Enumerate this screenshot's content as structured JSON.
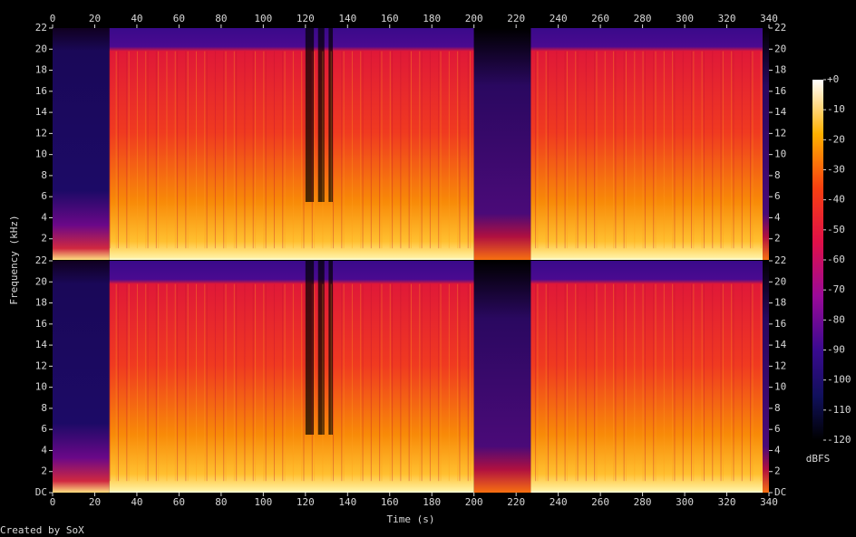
{
  "chart_data": [
    {
      "type": "spectrogram",
      "xlim": [
        0,
        340
      ],
      "xticks": [
        0,
        20,
        40,
        60,
        80,
        100,
        120,
        140,
        160,
        180,
        200,
        220,
        240,
        260,
        280,
        300,
        320,
        340
      ],
      "ylim": [
        0,
        22
      ],
      "yticks": [
        2,
        4,
        6,
        8,
        10,
        12,
        14,
        16,
        18,
        20,
        22
      ]
    },
    {
      "type": "spectrogram",
      "xlabel": "Time (s)",
      "ylabel": "Frequency (kHz)",
      "xlim": [
        0,
        340
      ],
      "xticks": [
        0,
        20,
        40,
        60,
        80,
        100,
        120,
        140,
        160,
        180,
        200,
        220,
        240,
        260,
        280,
        300,
        320,
        340
      ],
      "ylim": [
        0,
        22
      ],
      "yticks": [
        {
          "value": 0,
          "label": "DC"
        },
        2,
        4,
        6,
        8,
        10,
        12,
        14,
        16,
        18,
        20,
        22
      ],
      "colorbar": {
        "label": "dBFS",
        "lim": [
          -120,
          0
        ],
        "ticks": [
          {
            "value": 0,
            "label": "+0"
          },
          -10,
          -20,
          -30,
          -40,
          -50,
          -60,
          -70,
          -80,
          -90,
          -100,
          -110,
          -120
        ]
      }
    }
  ],
  "footer": "Created by SoX"
}
